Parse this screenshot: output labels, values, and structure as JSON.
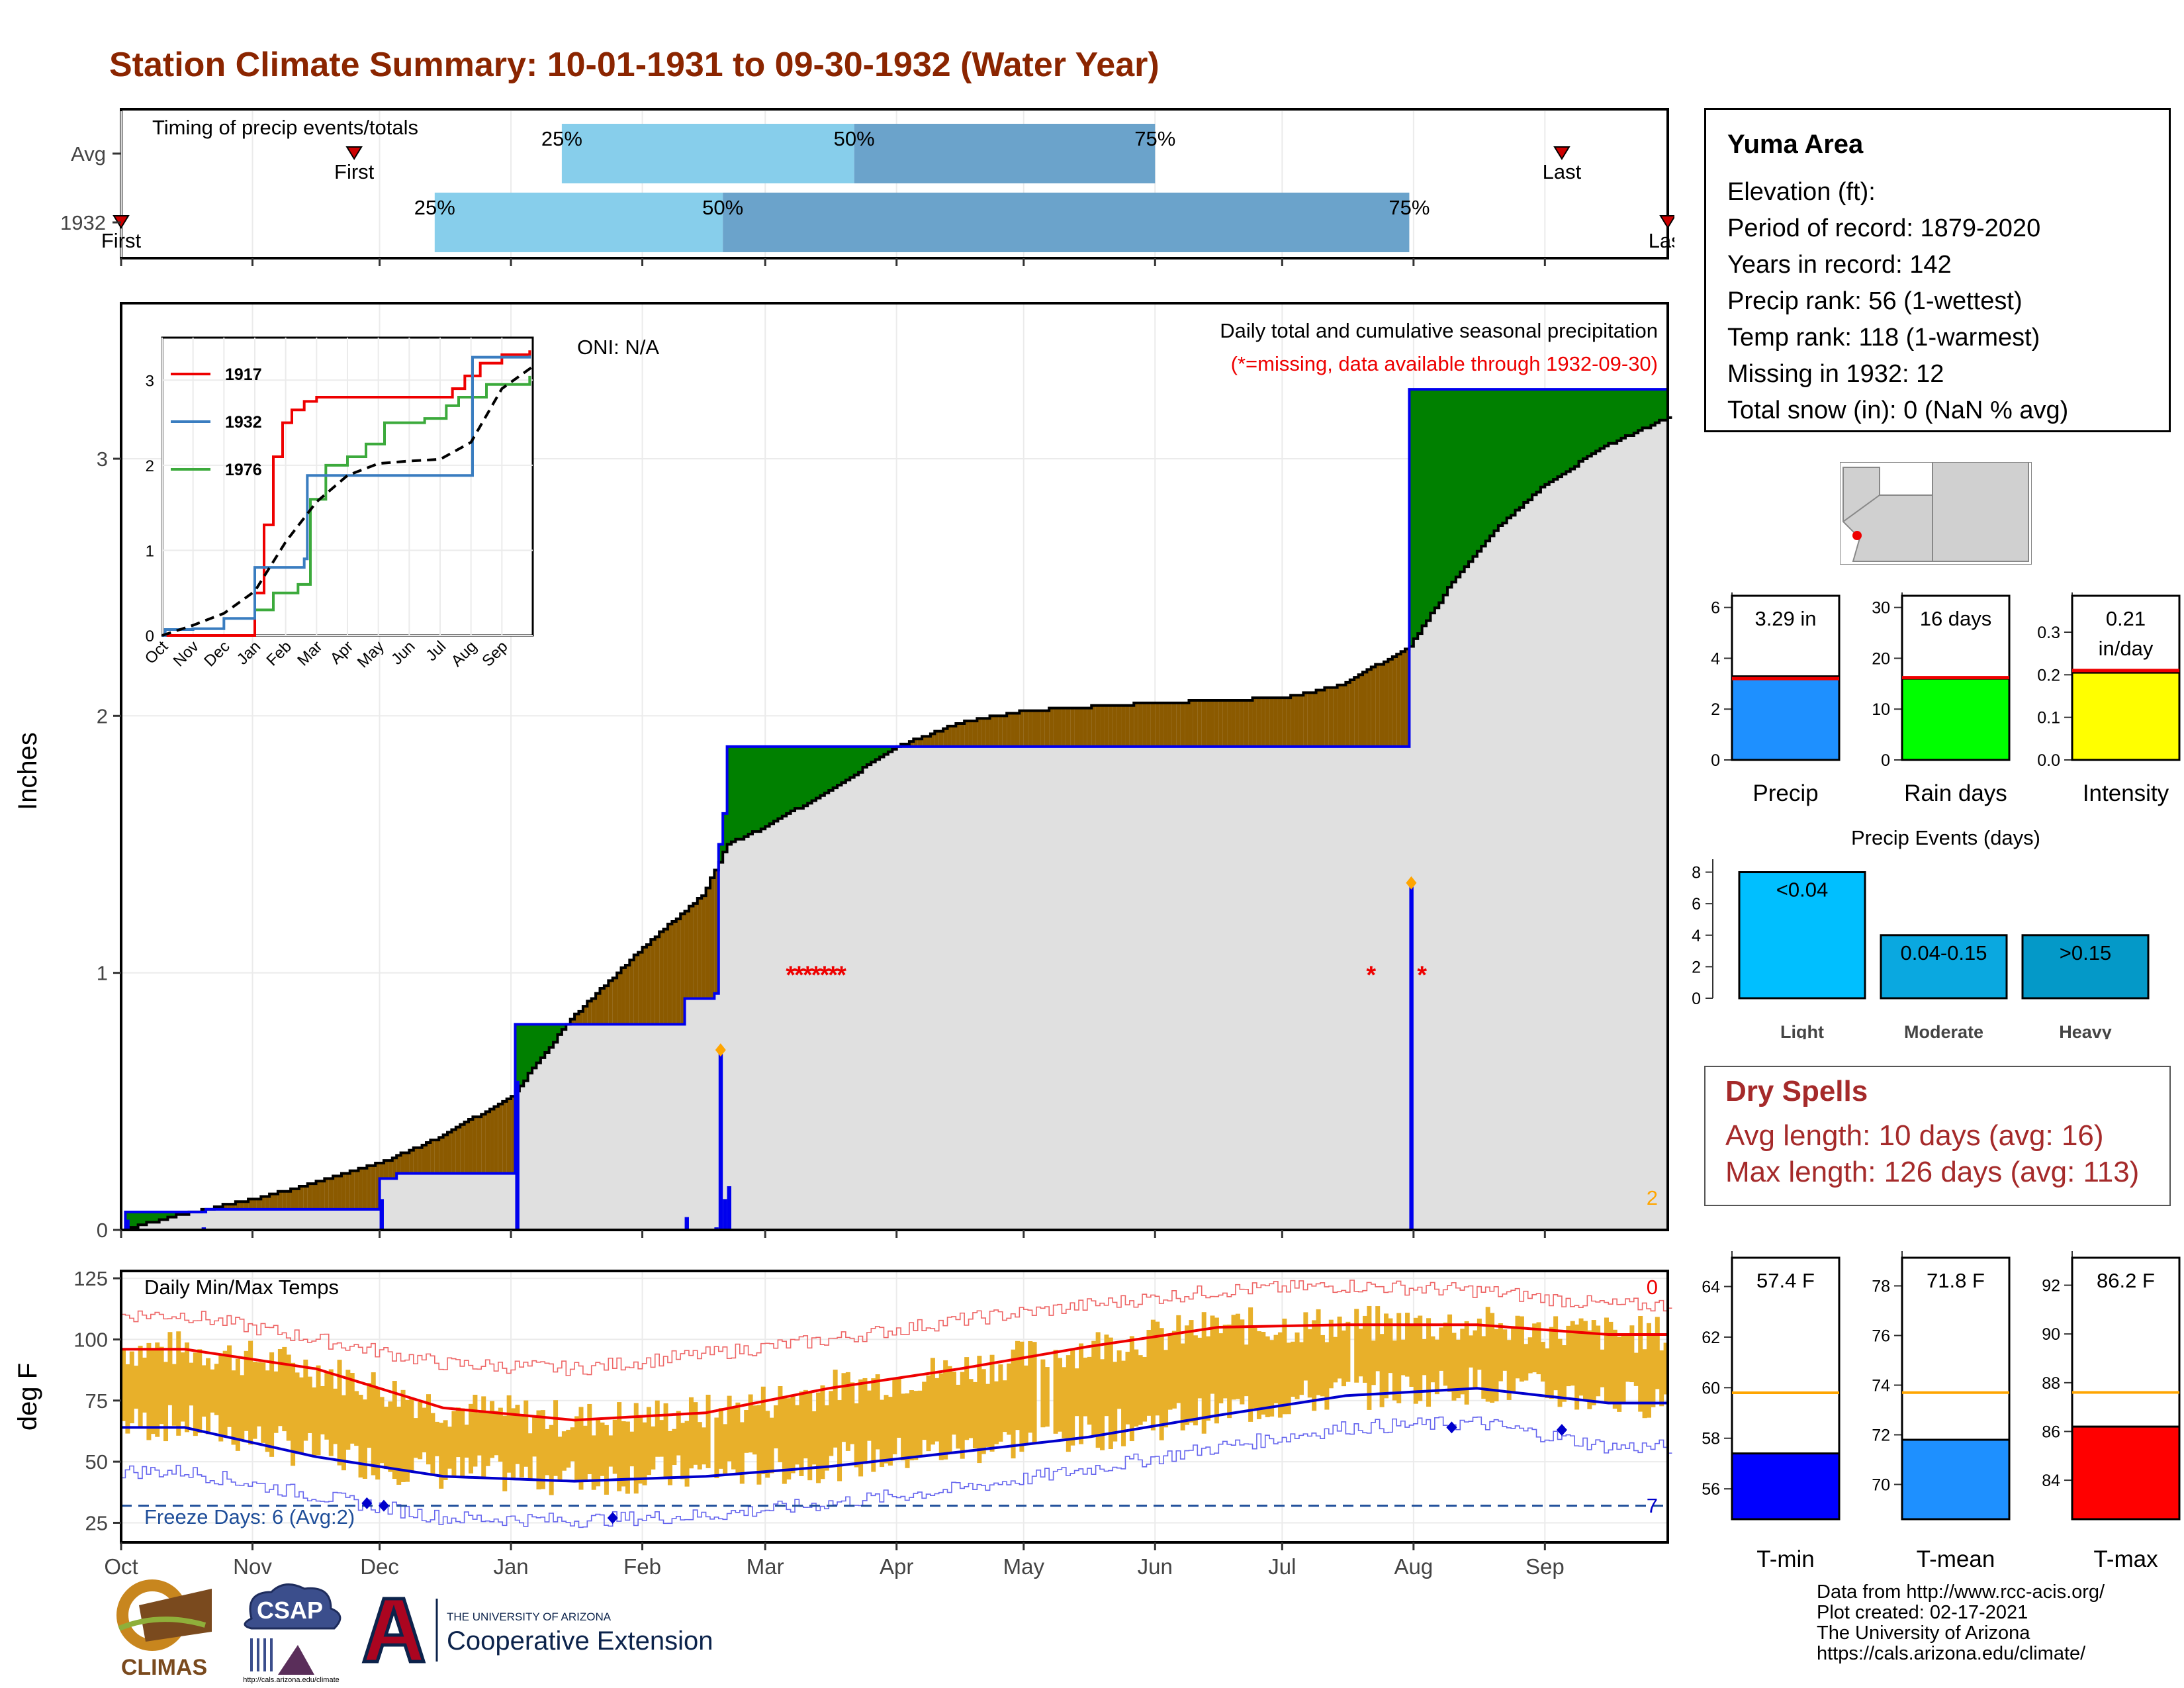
{
  "title": "Station Climate Summary: 10-01-1931 to 09-30-1932 (Water Year)",
  "timing": {
    "label": "Timing of precip events/totals",
    "rows": [
      {
        "name": "Avg",
        "first_date": "1931-11-25",
        "first_label": "First",
        "last_date": "1932-09-05",
        "last_label": "Last",
        "p25_date": "1932-01-13",
        "p50_date": "1932-03-22",
        "p75_date": "1932-06-01"
      },
      {
        "name": "1932",
        "first_date": "1931-10-01",
        "first_label": "First",
        "last_date": "1932-09-30",
        "last_label": "Last",
        "p25_date": "1931-12-14",
        "p50_date": "1932-02-20",
        "p75_date": "1932-07-31"
      }
    ],
    "pct_labels": [
      "25%",
      "50%",
      "75%"
    ],
    "colors": {
      "early": "#87CEEB",
      "late": "#6BA3CB",
      "marker": "#CC0000"
    }
  },
  "precip": {
    "ylabel": "Inches",
    "oni": "ONI: N/A",
    "caption1": "Daily total and cumulative seasonal precipitation",
    "caption2": "(*=missing, data available through 1932-09-30)",
    "corner_count": "2",
    "yticks": [
      0,
      1,
      2,
      3
    ],
    "ylim": [
      0,
      3.6
    ],
    "observed_cumulative": [
      [
        "1931-10-01",
        0
      ],
      [
        "1931-10-02",
        0.07
      ],
      [
        "1931-10-20",
        0.07
      ],
      [
        "1931-10-21",
        0.08
      ],
      [
        "1931-11-30",
        0.08
      ],
      [
        "1931-12-01",
        0.2
      ],
      [
        "1931-12-04",
        0.2
      ],
      [
        "1931-12-05",
        0.22
      ],
      [
        "1932-01-01",
        0.22
      ],
      [
        "1932-01-02",
        0.8
      ],
      [
        "1932-02-10",
        0.8
      ],
      [
        "1932-02-11",
        0.9
      ],
      [
        "1932-02-18",
        0.92
      ],
      [
        "1932-02-19",
        1.5
      ],
      [
        "1932-02-20",
        1.62
      ],
      [
        "1932-02-21",
        1.88
      ],
      [
        "1932-07-30",
        1.88
      ],
      [
        "1932-07-31",
        3.27
      ],
      [
        "1932-09-30",
        3.29
      ]
    ],
    "normal_cumulative": [
      [
        "1931-10-01",
        0.0
      ],
      [
        "1931-10-15",
        0.06
      ],
      [
        "1931-11-01",
        0.12
      ],
      [
        "1931-11-15",
        0.18
      ],
      [
        "1931-12-01",
        0.26
      ],
      [
        "1931-12-15",
        0.36
      ],
      [
        "1932-01-01",
        0.52
      ],
      [
        "1932-01-15",
        0.82
      ],
      [
        "1932-02-01",
        1.1
      ],
      [
        "1932-02-15",
        1.3
      ],
      [
        "1932-02-21",
        1.5
      ],
      [
        "1932-03-01",
        1.57
      ],
      [
        "1932-03-15",
        1.7
      ],
      [
        "1932-04-01",
        1.88
      ],
      [
        "1932-04-15",
        1.97
      ],
      [
        "1932-05-01",
        2.02
      ],
      [
        "1932-06-01",
        2.05
      ],
      [
        "1932-07-01",
        2.07
      ],
      [
        "1932-07-15",
        2.12
      ],
      [
        "1932-07-31",
        2.27
      ],
      [
        "1932-08-10",
        2.52
      ],
      [
        "1932-08-20",
        2.72
      ],
      [
        "1932-09-01",
        2.9
      ],
      [
        "1932-09-15",
        3.05
      ],
      [
        "1932-09-30",
        3.16
      ]
    ],
    "daily_bars": [
      [
        "1931-10-02",
        0.04
      ],
      [
        "1931-10-20",
        0.01
      ],
      [
        "1931-12-01",
        0.12
      ],
      [
        "1932-01-02",
        0.58
      ],
      [
        "1932-02-11",
        0.05
      ],
      [
        "1932-02-18",
        0.01
      ],
      [
        "1932-02-19",
        0.7
      ],
      [
        "1932-02-20",
        0.12
      ],
      [
        "1932-02-21",
        0.17
      ],
      [
        "1932-07-31",
        1.35
      ]
    ],
    "max_markers": [
      [
        "1932-02-19",
        0.7
      ],
      [
        "1932-07-31",
        1.35
      ]
    ],
    "missing_markers": [
      [
        "1932-03-07",
        1
      ],
      [
        "1932-03-09",
        1
      ],
      [
        "1932-03-11",
        1
      ],
      [
        "1932-03-13",
        1
      ],
      [
        "1932-03-15",
        1
      ],
      [
        "1932-03-17",
        1
      ],
      [
        "1932-03-19",
        1
      ],
      [
        "1932-07-22",
        1
      ],
      [
        "1932-08-03",
        1
      ]
    ],
    "colors": {
      "above": "#008000",
      "below": "#8B5A00",
      "normal_fill": "#E0E0E0",
      "observed": "#0000EE",
      "missing": "#EE0000"
    }
  },
  "inset": {
    "legend": [
      "1917",
      "1932",
      "1976"
    ],
    "legend_colors": [
      "#EE0000",
      "#3A7DC0",
      "#3CAA3C"
    ],
    "yticks": [
      0,
      1,
      2,
      3
    ],
    "months": [
      "Oct",
      "Nov",
      "Dec",
      "Jan",
      "Feb",
      "Mar",
      "Apr",
      "May",
      "Jun",
      "Jul",
      "Aug",
      "Sep"
    ],
    "series_1917": [
      [
        0,
        0
      ],
      [
        2.9,
        0
      ],
      [
        3.0,
        0.5
      ],
      [
        3.3,
        1.3
      ],
      [
        3.6,
        2.1
      ],
      [
        3.9,
        2.5
      ],
      [
        4.2,
        2.65
      ],
      [
        4.6,
        2.75
      ],
      [
        5.0,
        2.8
      ],
      [
        9.0,
        2.8
      ],
      [
        9.4,
        2.9
      ],
      [
        9.8,
        3.05
      ],
      [
        10.3,
        3.2
      ],
      [
        11.0,
        3.3
      ],
      [
        11.9,
        3.35
      ]
    ],
    "series_1932": [
      [
        0,
        0
      ],
      [
        0.1,
        0.07
      ],
      [
        1.0,
        0.08
      ],
      [
        2.0,
        0.2
      ],
      [
        3.0,
        0.8
      ],
      [
        4.6,
        0.9
      ],
      [
        4.7,
        1.88
      ],
      [
        10.0,
        1.88
      ],
      [
        10.05,
        3.27
      ],
      [
        11.9,
        3.29
      ]
    ],
    "series_1976": [
      [
        0,
        0
      ],
      [
        3.0,
        0.3
      ],
      [
        3.6,
        0.5
      ],
      [
        4.4,
        0.6
      ],
      [
        4.8,
        1.6
      ],
      [
        5.3,
        2.0
      ],
      [
        6.0,
        2.1
      ],
      [
        6.6,
        2.25
      ],
      [
        7.2,
        2.5
      ],
      [
        8.5,
        2.55
      ],
      [
        9.2,
        2.7
      ],
      [
        9.6,
        2.8
      ],
      [
        10.5,
        2.95
      ],
      [
        11.9,
        3.05
      ]
    ],
    "series_avg": [
      [
        0,
        0
      ],
      [
        1,
        0.12
      ],
      [
        2,
        0.26
      ],
      [
        3,
        0.52
      ],
      [
        4,
        1.1
      ],
      [
        5,
        1.57
      ],
      [
        6,
        1.88
      ],
      [
        7,
        2.02
      ],
      [
        8,
        2.05
      ],
      [
        9,
        2.07
      ],
      [
        10,
        2.27
      ],
      [
        11,
        2.9
      ],
      [
        12,
        3.16
      ]
    ]
  },
  "temps": {
    "label": "Daily Min/Max Temps",
    "ylabel": "deg F",
    "yticks": [
      25,
      50,
      75,
      100,
      125
    ],
    "ylim": [
      17,
      128
    ],
    "freeze_line": 32,
    "freeze_label": "Freeze Days: 6 (Avg:2)",
    "count_hot": "0",
    "count_cold": "7",
    "months": [
      "Oct",
      "Nov",
      "Dec",
      "Jan",
      "Feb",
      "Mar",
      "Apr",
      "May",
      "Jun",
      "Jul",
      "Aug",
      "Sep"
    ],
    "normal_max_month": [
      96,
      88,
      72,
      67,
      70,
      80,
      88,
      97,
      105,
      106,
      106,
      102
    ],
    "normal_min_month": [
      64,
      52,
      44,
      42,
      44,
      48,
      54,
      60,
      69,
      77,
      80,
      74
    ],
    "record_max_month": [
      110,
      100,
      90,
      88,
      94,
      100,
      108,
      114,
      120,
      122,
      120,
      114
    ],
    "record_min_month": [
      46,
      36,
      27,
      26,
      28,
      33,
      39,
      47,
      56,
      64,
      66,
      56
    ],
    "colors": {
      "range": "#E8B02A",
      "max": "#EE0000",
      "min": "#0000CC",
      "record": "#EE6666",
      "record_min": "#6666EE",
      "freeze": "#1F4E99"
    }
  },
  "station": {
    "name": "Yuma Area",
    "lines": [
      "Elevation (ft):",
      "Period of record: 1879-2020",
      "Years in record: 142",
      "Precip rank: 56 (1-wettest)",
      "Temp rank: 118 (1-warmest)",
      "Missing in 1932: 12",
      "Total snow (in): 0 (NaN % avg)"
    ]
  },
  "summary_bars": [
    {
      "label": "Precip",
      "value": 3.29,
      "value_text": "3.29 in",
      "normal": 3.2,
      "yticks": [
        0,
        2,
        4,
        6
      ],
      "ymax": 6.2,
      "color": "#1E90FF"
    },
    {
      "label": "Rain days",
      "value": 16,
      "value_text": "16 days",
      "normal": 16.2,
      "yticks": [
        0,
        10,
        20,
        30
      ],
      "ymax": 31,
      "color": "#00FF00"
    },
    {
      "label": "Intensity",
      "value": 0.205,
      "value_text": "0.21 in/day",
      "normal": 0.21,
      "yticks": [
        0.0,
        0.1,
        0.2,
        0.3
      ],
      "ymax": 0.37,
      "color": "#FFFF00"
    }
  ],
  "events": {
    "title": "Precip Events (days)",
    "yticks": [
      0,
      2,
      4,
      6,
      8
    ],
    "ymax": 8.4,
    "bars": [
      {
        "label": "Light",
        "range": "<0.04",
        "value": 8,
        "color": "#00BFFF"
      },
      {
        "label": "Moderate",
        "range": "0.04-0.15",
        "value": 4,
        "color": "#0AA8E0"
      },
      {
        "label": "Heavy",
        "range": ">0.15",
        "value": 4,
        "color": "#0499C8"
      }
    ]
  },
  "dry_spells": {
    "title": "Dry Spells",
    "avg": "Avg length: 10 days (avg: 16)",
    "max": "Max length: 126 days (avg: 113)"
  },
  "temp_bars": [
    {
      "label": "T-min",
      "value": 57.4,
      "value_text": "57.4 F",
      "normal": 59.8,
      "yticks": [
        56,
        58,
        60,
        62,
        64
      ],
      "ylim": [
        54.8,
        65.4
      ],
      "color": "#0000FF"
    },
    {
      "label": "T-mean",
      "value": 71.8,
      "value_text": "71.8 F",
      "normal": 73.7,
      "yticks": [
        70,
        72,
        74,
        76,
        78
      ],
      "ylim": [
        68.6,
        79.4
      ],
      "color": "#1E90FF"
    },
    {
      "label": "T-max",
      "value": 86.2,
      "value_text": "86.2 F",
      "normal": 87.6,
      "yticks": [
        84,
        86,
        88,
        90,
        92
      ],
      "ylim": [
        82.4,
        93.4
      ],
      "color": "#FF0000"
    }
  ],
  "credits": [
    "Data from http://www.rcc-acis.org/",
    "Plot created: 02-17-2021",
    "The University of Arizona",
    "https://cals.arizona.edu/climate/"
  ],
  "logos": {
    "climas": "CLIMAS",
    "csap": "CSAP",
    "csap_url": "http://cals.arizona.edu/climate",
    "ua_small": "THE UNIVERSITY OF ARIZONA",
    "ua_big": "Cooperative Extension"
  }
}
